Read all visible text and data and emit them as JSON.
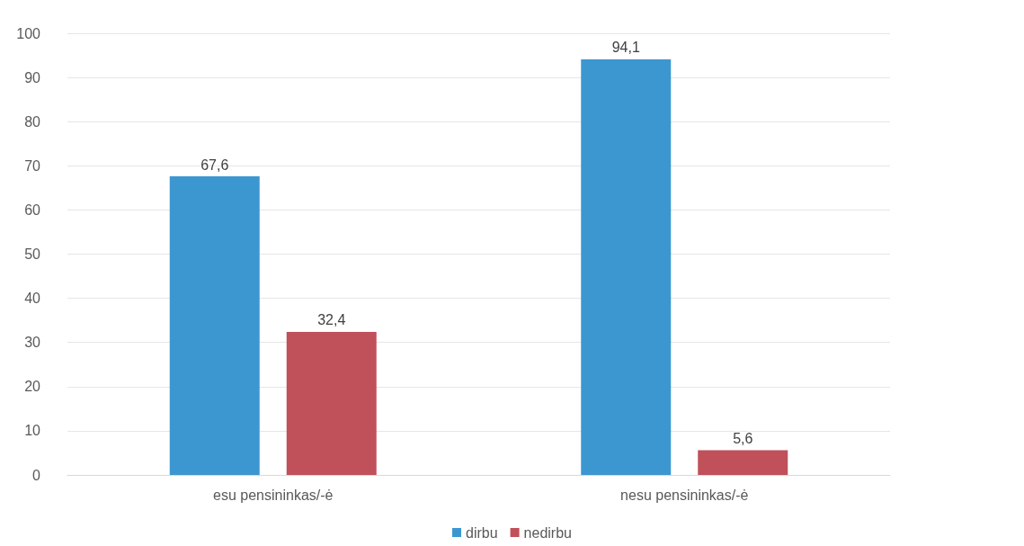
{
  "chart_data": {
    "type": "bar",
    "categories": [
      "esu pensininkas/-ė",
      "nesu pensininkas/-ė"
    ],
    "series": [
      {
        "name": "dirbu",
        "color": "#3c97d0",
        "values": [
          67.6,
          94.1
        ],
        "value_labels": [
          "67,6",
          "94,1"
        ]
      },
      {
        "name": "nedirbu",
        "color": "#c0505a",
        "values": [
          32.4,
          5.6
        ],
        "value_labels": [
          "32,4",
          "5,6"
        ]
      }
    ],
    "ylim": [
      0,
      100
    ],
    "yticks": [
      0,
      10,
      20,
      30,
      40,
      50,
      60,
      70,
      80,
      90,
      100
    ],
    "grid": "y",
    "legend": "bottom"
  }
}
